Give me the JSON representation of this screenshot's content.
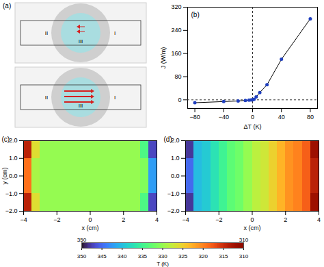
{
  "diagram": {
    "label": "(a)",
    "regions": [
      "I",
      "II",
      "III"
    ]
  },
  "chart_data": [
    {
      "label": "(b)",
      "type": "line",
      "x": [
        -80,
        -40,
        -20,
        -10,
        -5,
        -2,
        0,
        2,
        5,
        10,
        20,
        40,
        80
      ],
      "values": [
        -10,
        -6,
        -4,
        -2,
        -1,
        -0.5,
        0,
        2,
        10,
        25,
        52,
        140,
        280
      ],
      "color": "#1f3fbf",
      "marker": "circle",
      "xlim": [
        -90,
        90
      ],
      "xticks": [
        -80,
        -40,
        0,
        40,
        80
      ],
      "ylim": [
        -30,
        320
      ],
      "yticks": [
        0,
        80,
        160,
        240,
        320
      ],
      "x_label": "ΔT (K)",
      "y_label": "J (W/m)",
      "dashed_lines": {
        "x": [
          0
        ],
        "y": [
          0
        ]
      }
    },
    {
      "label": "(c)",
      "type": "heatmap",
      "x_bins": [
        -4,
        -3.5,
        -3,
        -2.5,
        -2,
        -1.5,
        -1,
        -0.5,
        0,
        0.5,
        1,
        1.5,
        2,
        2.5,
        3,
        3.5,
        4
      ],
      "y_bins": [
        -2,
        -1,
        0,
        1,
        2
      ],
      "cells": [
        [
          314,
          326,
          330,
          330,
          330,
          330,
          330,
          330,
          330,
          330,
          330,
          330,
          330,
          330,
          334,
          347
        ],
        [
          319,
          329,
          330,
          330,
          330,
          330,
          330,
          330,
          330,
          330,
          330,
          330,
          330,
          330,
          331,
          342
        ],
        [
          319,
          329,
          330,
          330,
          330,
          330,
          330,
          330,
          330,
          330,
          330,
          330,
          330,
          330,
          331,
          342
        ],
        [
          314,
          326,
          330,
          330,
          330,
          330,
          330,
          330,
          330,
          330,
          330,
          330,
          330,
          330,
          334,
          347
        ]
      ],
      "xlim": [
        -4,
        4
      ],
      "xticks": [
        -4,
        -2,
        0,
        2,
        4
      ],
      "ylim": [
        -2,
        2
      ],
      "yticks": [
        -2,
        -1,
        0,
        1,
        2
      ],
      "x_label": "x (cm)",
      "y_label": "y (cm)"
    },
    {
      "label": "(d)",
      "type": "heatmap",
      "x_bins": [
        -4,
        -3.5,
        -3,
        -2.5,
        -2,
        -1.5,
        -1,
        -0.5,
        0,
        0.5,
        1,
        1.5,
        2,
        2.5,
        3,
        3.5,
        4
      ],
      "y_bins": [
        -2,
        -1,
        0,
        1,
        2
      ],
      "cells": [
        [
          348,
          340,
          339,
          337,
          335,
          333,
          332,
          330,
          328,
          327,
          325,
          323,
          321,
          320,
          318,
          312
        ],
        [
          345,
          340,
          339,
          337,
          335,
          333,
          332,
          330,
          328,
          327,
          325,
          323,
          321,
          320,
          318,
          314
        ],
        [
          345,
          340,
          339,
          337,
          335,
          333,
          332,
          330,
          328,
          327,
          325,
          323,
          321,
          320,
          318,
          314
        ],
        [
          348,
          340,
          339,
          337,
          335,
          333,
          332,
          330,
          328,
          327,
          325,
          323,
          321,
          320,
          318,
          312
        ]
      ],
      "xlim": [
        -4,
        4
      ],
      "xticks": [
        -4,
        -2,
        0,
        2,
        4
      ],
      "ylim": [
        -2,
        2
      ],
      "yticks": [
        -2,
        -1,
        0,
        1,
        2
      ],
      "x_label": "x (cm)",
      "y_label": ""
    }
  ],
  "colorbar": {
    "label": "T (K)",
    "lim": [
      350,
      310
    ],
    "ticks": [
      350,
      345,
      340,
      335,
      330,
      325,
      320,
      315,
      310
    ],
    "end_labels": [
      350,
      310
    ]
  }
}
